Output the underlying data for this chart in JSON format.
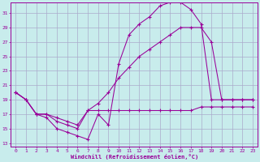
{
  "xlabel": "Windchill (Refroidissement éolien,°C)",
  "bg_color": "#c8ecec",
  "grid_color": "#aaaacc",
  "line_color": "#990099",
  "xlim": [
    -0.5,
    23.5
  ],
  "ylim": [
    12.5,
    32.5
  ],
  "yticks": [
    13,
    15,
    17,
    19,
    21,
    23,
    25,
    27,
    29,
    31
  ],
  "xticks": [
    0,
    1,
    2,
    3,
    4,
    5,
    6,
    7,
    8,
    9,
    10,
    11,
    12,
    13,
    14,
    15,
    16,
    17,
    18,
    19,
    20,
    21,
    22,
    23
  ],
  "line1_x": [
    0,
    1,
    2,
    3,
    4,
    5,
    6,
    7,
    8,
    9,
    10,
    11,
    12,
    13,
    14,
    15,
    16,
    17,
    18,
    19,
    20,
    21,
    22,
    23
  ],
  "line1_y": [
    20,
    19,
    17,
    16.5,
    15,
    14.5,
    14,
    13.5,
    17,
    15.5,
    24,
    28,
    29.5,
    30.5,
    32,
    32.5,
    32.5,
    31.5,
    29.5,
    19,
    19,
    19,
    19,
    19
  ],
  "line2_x": [
    0,
    1,
    2,
    3,
    4,
    5,
    6,
    7,
    8,
    9,
    10,
    11,
    12,
    13,
    14,
    15,
    16,
    17,
    18,
    19,
    20,
    21,
    22,
    23
  ],
  "line2_y": [
    20,
    19,
    17,
    17,
    16,
    15.5,
    15,
    17.5,
    18.5,
    20,
    22,
    23.5,
    25,
    26,
    27,
    28,
    29,
    29,
    29,
    27,
    19,
    19,
    19,
    19
  ],
  "line3_x": [
    0,
    1,
    2,
    3,
    4,
    5,
    6,
    7,
    8,
    9,
    10,
    11,
    12,
    13,
    14,
    15,
    16,
    17,
    18,
    19,
    20,
    21,
    22,
    23
  ],
  "line3_y": [
    20,
    19,
    17,
    17,
    16.5,
    16,
    15.5,
    17.5,
    17.5,
    17.5,
    17.5,
    17.5,
    17.5,
    17.5,
    17.5,
    17.5,
    17.5,
    17.5,
    18,
    18,
    18,
    18,
    18,
    18
  ]
}
